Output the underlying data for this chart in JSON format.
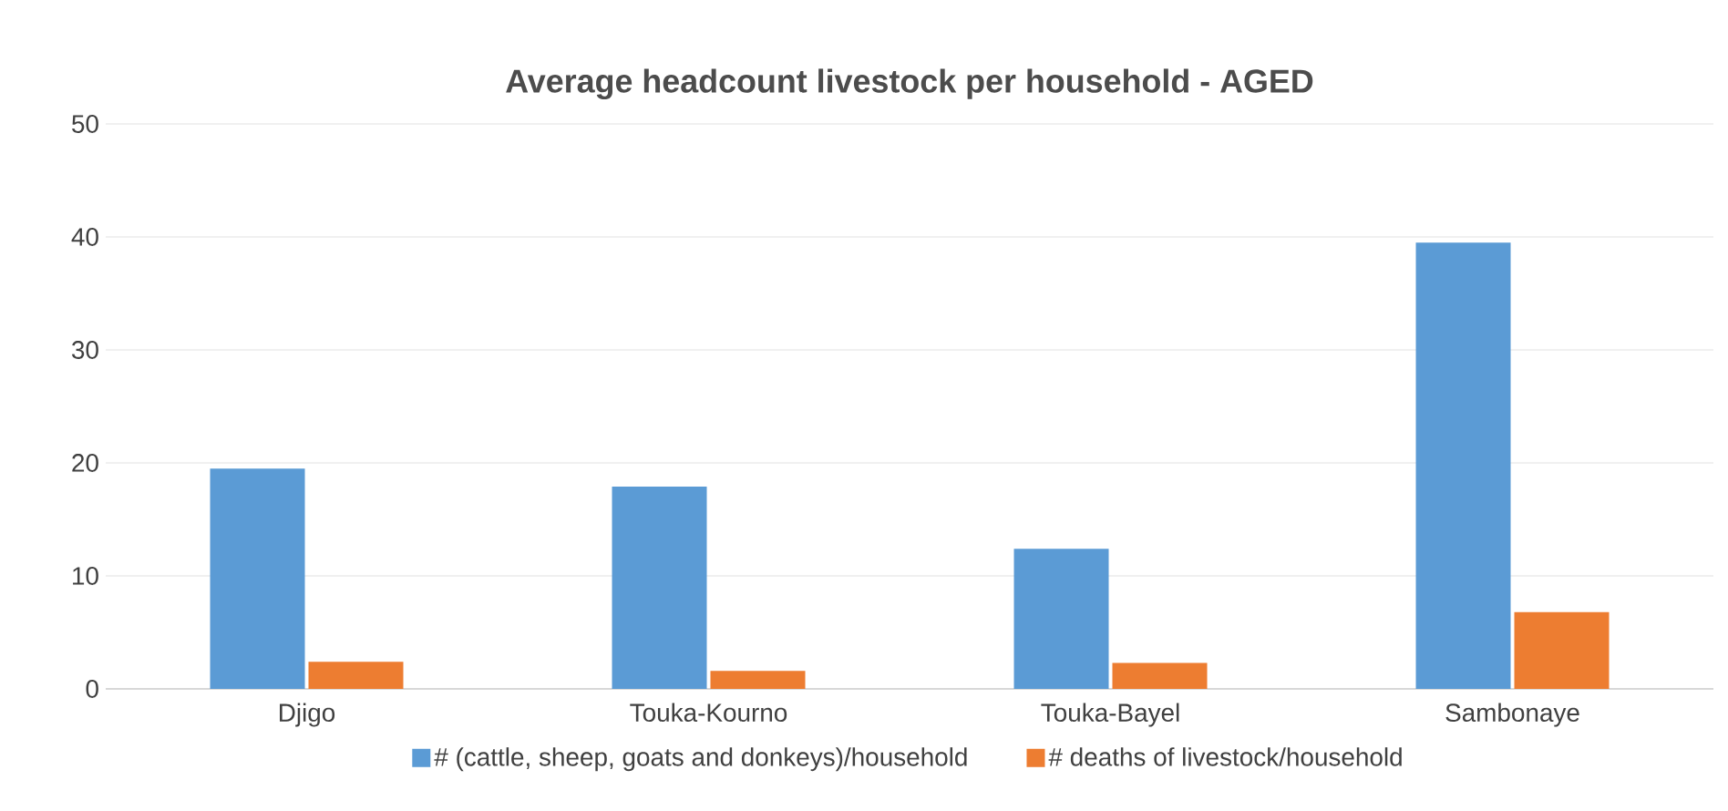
{
  "chart_data": {
    "type": "bar",
    "title": "Average headcount livestock per household - AGED",
    "categories": [
      "Djigo",
      "Touka-Kourno",
      "Touka-Bayel",
      "Sambonaye"
    ],
    "series": [
      {
        "name": "# (cattle, sheep, goats and donkeys)/household",
        "color": "#5b9bd5",
        "values": [
          19.5,
          17.9,
          12.4,
          39.5
        ]
      },
      {
        "name": "# deaths of livestock/household",
        "color": "#ed7d31",
        "values": [
          2.4,
          1.6,
          2.3,
          6.8
        ]
      }
    ],
    "ylim": [
      0,
      50
    ],
    "yticks": [
      0,
      10,
      20,
      30,
      40,
      50
    ],
    "grid": "y",
    "legend": "bottom"
  }
}
